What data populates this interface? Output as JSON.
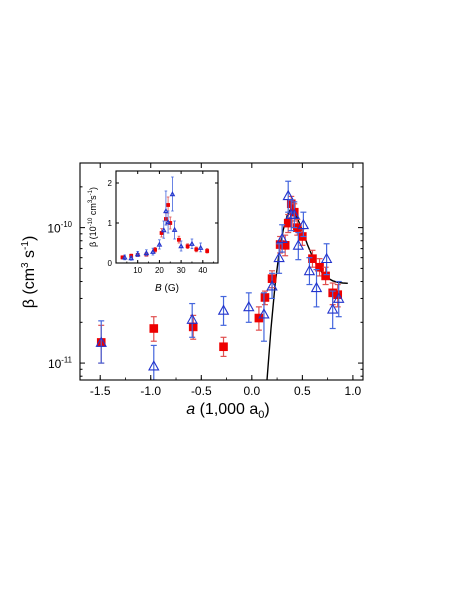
{
  "chart_data": [
    {
      "type": "scatter",
      "title": "",
      "xlabel": "a (1,000 a0)",
      "ylabel": "β (cm3 s-1)",
      "x_scale": "linear",
      "y_scale": "log",
      "xlim": [
        -1.7,
        1.1
      ],
      "ylim": [
        7.5e-12,
        3e-10
      ],
      "x_ticks": [
        "-1.5",
        "-1.0",
        "-0.5",
        "0.0",
        "0.5",
        "1.0"
      ],
      "y_ticks": [
        "10-11",
        "10-10"
      ],
      "legend": "none",
      "grid": false,
      "series": [
        {
          "marker": "filled-square",
          "color": "#ee0000",
          "errorbar_color": "#e05050",
          "points": [
            {
              "x": -1.49,
              "y": 1.42e-11,
              "lo": 1e-11,
              "hi": 1.9e-11
            },
            {
              "x": -0.97,
              "y": 1.8e-11,
              "lo": 1.45e-11,
              "hi": 2.2e-11
            },
            {
              "x": -0.58,
              "y": 1.85e-11,
              "lo": 1.5e-11,
              "hi": 2.25e-11
            },
            {
              "x": -0.28,
              "y": 1.32e-11,
              "lo": 1.12e-11,
              "hi": 1.55e-11
            },
            {
              "x": 0.07,
              "y": 2.15e-11,
              "lo": 1.75e-11,
              "hi": 2.6e-11
            },
            {
              "x": 0.13,
              "y": 3.05e-11,
              "lo": 2.7e-11,
              "hi": 3.4e-11
            },
            {
              "x": 0.2,
              "y": 4.2e-11,
              "lo": 3.6e-11,
              "hi": 4.8e-11
            },
            {
              "x": 0.28,
              "y": 7.5e-11,
              "lo": 6.5e-11,
              "hi": 8.6e-11
            },
            {
              "x": 0.33,
              "y": 7.4e-11,
              "lo": 6.2e-11,
              "hi": 8.8e-11
            },
            {
              "x": 0.36,
              "y": 1.08e-10,
              "lo": 9.2e-11,
              "hi": 1.25e-10
            },
            {
              "x": 0.39,
              "y": 1.5e-10,
              "lo": 1.3e-10,
              "hi": 1.7e-10
            },
            {
              "x": 0.42,
              "y": 1.3e-10,
              "lo": 1.12e-10,
              "hi": 1.5e-10
            },
            {
              "x": 0.45,
              "y": 1e-10,
              "lo": 8.8e-11,
              "hi": 1.15e-10
            },
            {
              "x": 0.5,
              "y": 8.6e-11,
              "lo": 7.4e-11,
              "hi": 9.8e-11
            },
            {
              "x": 0.6,
              "y": 5.9e-11,
              "lo": 5.1e-11,
              "hi": 6.8e-11
            },
            {
              "x": 0.67,
              "y": 5.1e-11,
              "lo": 4.4e-11,
              "hi": 5.9e-11
            },
            {
              "x": 0.73,
              "y": 4.4e-11,
              "lo": 3.8e-11,
              "hi": 5.1e-11
            },
            {
              "x": 0.8,
              "y": 3.3e-11,
              "lo": 2.7e-11,
              "hi": 3.9e-11
            },
            {
              "x": 0.85,
              "y": 3.2e-11,
              "lo": 2.6e-11,
              "hi": 3.8e-11
            }
          ]
        },
        {
          "marker": "open-triangle",
          "color": "#2233cc",
          "errorbar_color": "#4466dd",
          "points": [
            {
              "x": -1.49,
              "y": 1.42e-11,
              "lo": 1e-11,
              "hi": 2.05e-11
            },
            {
              "x": -0.97,
              "y": 9.5e-12,
              "lo": 7.5e-12,
              "hi": 1.35e-11
            },
            {
              "x": -0.59,
              "y": 2.1e-11,
              "lo": 1.55e-11,
              "hi": 2.75e-11
            },
            {
              "x": -0.28,
              "y": 2.45e-11,
              "lo": 1.9e-11,
              "hi": 3.1e-11
            },
            {
              "x": -0.03,
              "y": 2.6e-11,
              "lo": 2e-11,
              "hi": 3.3e-11
            },
            {
              "x": 0.12,
              "y": 2.3e-11,
              "lo": 1.45e-11,
              "hi": 3.3e-11
            },
            {
              "x": 0.2,
              "y": 3.7e-11,
              "lo": 3e-11,
              "hi": 4.6e-11
            },
            {
              "x": 0.27,
              "y": 6e-11,
              "lo": 4.6e-11,
              "hi": 7.6e-11
            },
            {
              "x": 0.3,
              "y": 8.3e-11,
              "lo": 6.6e-11,
              "hi": 1.05e-10
            },
            {
              "x": 0.36,
              "y": 1.72e-10,
              "lo": 1.3e-10,
              "hi": 2.2e-10
            },
            {
              "x": 0.39,
              "y": 1.25e-10,
              "lo": 9.5e-11,
              "hi": 1.6e-10
            },
            {
              "x": 0.42,
              "y": 1.25e-10,
              "lo": 1e-10,
              "hi": 1.55e-10
            },
            {
              "x": 0.46,
              "y": 7.4e-11,
              "lo": 5.8e-11,
              "hi": 9.2e-11
            },
            {
              "x": 0.51,
              "y": 1.05e-10,
              "lo": 8.6e-11,
              "hi": 1.3e-10
            },
            {
              "x": 0.57,
              "y": 4.8e-11,
              "lo": 3.8e-11,
              "hi": 6e-11
            },
            {
              "x": 0.64,
              "y": 3.6e-11,
              "lo": 2.6e-11,
              "hi": 4.9e-11
            },
            {
              "x": 0.74,
              "y": 5.9e-11,
              "lo": 4.5e-11,
              "hi": 7.6e-11
            },
            {
              "x": 0.8,
              "y": 2.5e-11,
              "lo": 1.8e-11,
              "hi": 3.4e-11
            },
            {
              "x": 0.86,
              "y": 3e-11,
              "lo": 2.2e-11,
              "hi": 4e-11
            }
          ]
        }
      ],
      "curve": {
        "color": "#000000",
        "points": [
          [
            0.15,
            7.5e-12
          ],
          [
            0.19,
            1.8e-11
          ],
          [
            0.23,
            3.8e-11
          ],
          [
            0.27,
            6.5e-11
          ],
          [
            0.31,
            9.6e-11
          ],
          [
            0.35,
            1.23e-10
          ],
          [
            0.38,
            1.35e-10
          ],
          [
            0.41,
            1.32e-10
          ],
          [
            0.45,
            1.18e-10
          ],
          [
            0.5,
            9.5e-11
          ],
          [
            0.55,
            7.5e-11
          ],
          [
            0.6,
            6.1e-11
          ],
          [
            0.65,
            5.2e-11
          ],
          [
            0.7,
            4.6e-11
          ],
          [
            0.75,
            4.25e-11
          ],
          [
            0.8,
            4.05e-11
          ],
          [
            0.85,
            3.95e-11
          ],
          [
            0.9,
            3.9e-11
          ],
          [
            0.95,
            3.88e-11
          ]
        ]
      }
    },
    {
      "type": "scatter",
      "title": "",
      "xlabel": "B (G)",
      "ylabel": "β (10-10 cm3 s-1)",
      "x_scale": "linear",
      "y_scale": "linear",
      "xlim": [
        0,
        47
      ],
      "ylim": [
        0,
        2.3
      ],
      "x_ticks": [
        "10",
        "20",
        "30",
        "40"
      ],
      "y_ticks": [
        "0",
        "1",
        "2"
      ],
      "legend": "none",
      "grid": false,
      "series": [
        {
          "marker": "filled-square",
          "color": "#ee0000",
          "errorbar_color": "#e05050",
          "points": [
            {
              "x": 3,
              "y": 0.14,
              "lo": 0.1,
              "hi": 0.18
            },
            {
              "x": 7,
              "y": 0.18,
              "lo": 0.14,
              "hi": 0.22
            },
            {
              "x": 10,
              "y": 0.2,
              "lo": 0.16,
              "hi": 0.24
            },
            {
              "x": 14,
              "y": 0.21,
              "lo": 0.17,
              "hi": 0.26
            },
            {
              "x": 18,
              "y": 0.33,
              "lo": 0.27,
              "hi": 0.39
            },
            {
              "x": 21,
              "y": 0.75,
              "lo": 0.65,
              "hi": 0.86
            },
            {
              "x": 23,
              "y": 1.1,
              "lo": 0.95,
              "hi": 1.25
            },
            {
              "x": 24,
              "y": 1.45,
              "lo": 1.25,
              "hi": 1.65
            },
            {
              "x": 25,
              "y": 1.0,
              "lo": 0.85,
              "hi": 1.15
            },
            {
              "x": 29,
              "y": 0.58,
              "lo": 0.5,
              "hi": 0.67
            },
            {
              "x": 33,
              "y": 0.42,
              "lo": 0.36,
              "hi": 0.48
            },
            {
              "x": 37,
              "y": 0.34,
              "lo": 0.28,
              "hi": 0.4
            },
            {
              "x": 42,
              "y": 0.3,
              "lo": 0.25,
              "hi": 0.36
            }
          ]
        },
        {
          "marker": "open-triangle",
          "color": "#2233cc",
          "errorbar_color": "#4466dd",
          "points": [
            {
              "x": 4,
              "y": 0.14,
              "lo": 0.08,
              "hi": 0.2
            },
            {
              "x": 7,
              "y": 0.12,
              "lo": 0.07,
              "hi": 0.17
            },
            {
              "x": 10,
              "y": 0.22,
              "lo": 0.16,
              "hi": 0.29
            },
            {
              "x": 14,
              "y": 0.25,
              "lo": 0.18,
              "hi": 0.33
            },
            {
              "x": 17,
              "y": 0.28,
              "lo": 0.2,
              "hi": 0.37
            },
            {
              "x": 20,
              "y": 0.46,
              "lo": 0.35,
              "hi": 0.58
            },
            {
              "x": 22,
              "y": 0.82,
              "lo": 0.62,
              "hi": 1.05
            },
            {
              "x": 23,
              "y": 1.3,
              "lo": 0.95,
              "hi": 1.8
            },
            {
              "x": 24,
              "y": 1.02,
              "lo": 0.75,
              "hi": 1.3
            },
            {
              "x": 26,
              "y": 1.72,
              "lo": 1.3,
              "hi": 2.15
            },
            {
              "x": 27,
              "y": 0.83,
              "lo": 0.6,
              "hi": 1.05
            },
            {
              "x": 30,
              "y": 0.42,
              "lo": 0.3,
              "hi": 0.55
            },
            {
              "x": 35,
              "y": 0.48,
              "lo": 0.36,
              "hi": 0.6
            },
            {
              "x": 39,
              "y": 0.38,
              "lo": 0.28,
              "hi": 0.5
            }
          ]
        }
      ]
    }
  ]
}
